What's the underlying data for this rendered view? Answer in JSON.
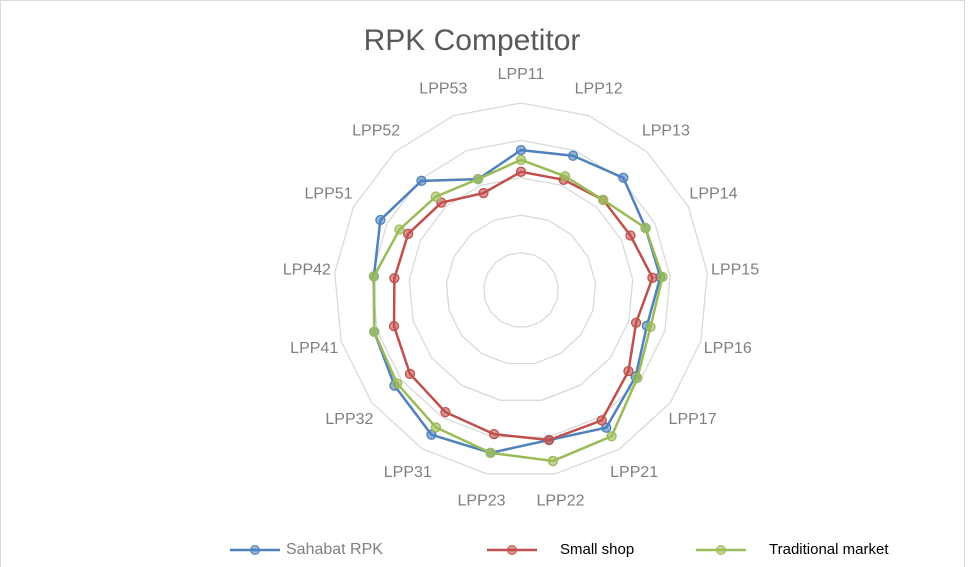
{
  "chart_data": {
    "type": "radar",
    "title": "RPK Competitor",
    "categories": [
      "LPP11",
      "LPP12",
      "LPP13",
      "LPP14",
      "LPP15",
      "LPP16",
      "LPP17",
      "LPP21",
      "LPP22",
      "LPP23",
      "LPP31",
      "LPP32",
      "LPP41",
      "LPP42",
      "LPP51",
      "LPP52",
      "LPP53"
    ],
    "series": [
      {
        "name": "Sahabat RPK",
        "color": "#4f81bd",
        "values": [
          3.74,
          3.85,
          4.06,
          3.72,
          3.74,
          3.5,
          3.84,
          4.33,
          4.08,
          4.43,
          4.55,
          4.24,
          4.08,
          3.95,
          4.2,
          3.95,
          3.18
        ]
      },
      {
        "name": "Small shop",
        "color": "#c0504d",
        "values": [
          3.16,
          3.16,
          3.26,
          3.27,
          3.53,
          3.2,
          3.6,
          4.1,
          4.08,
          3.92,
          3.84,
          3.72,
          3.53,
          3.4,
          3.37,
          3.16,
          2.78
        ]
      },
      {
        "name": "Traditional market",
        "color": "#9bbb59",
        "values": [
          3.48,
          3.26,
          3.26,
          3.72,
          3.8,
          3.6,
          3.9,
          4.6,
          4.65,
          4.43,
          4.32,
          4.15,
          4.08,
          3.95,
          3.63,
          3.38,
          3.18
        ]
      }
    ],
    "ylim": [
      0,
      5
    ],
    "yticks": [
      1,
      2,
      3,
      4,
      5
    ],
    "grid": true,
    "legend": "bottom"
  }
}
